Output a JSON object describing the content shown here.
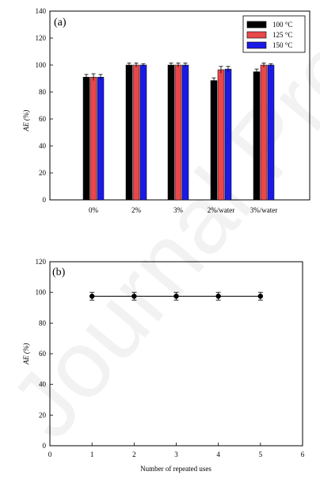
{
  "colors": {
    "s100": "#000000",
    "s125": "#e8474b",
    "s150": "#1a1ae6",
    "axis": "#000000"
  },
  "chart_data": [
    {
      "panel": "(a)",
      "type": "bar",
      "ylabel": "AE (%)",
      "ylim": [
        0,
        140
      ],
      "yticks": [
        0,
        20,
        40,
        60,
        80,
        100,
        120,
        140
      ],
      "categories": [
        "0%",
        "2%",
        "3%",
        "2%/water",
        "3%/water"
      ],
      "legend_position": "top-right",
      "series": [
        {
          "name": "100 °C",
          "color": "#000000",
          "values": [
            91,
            100,
            100,
            88.5,
            95
          ],
          "errors": [
            2,
            1.5,
            1.5,
            2,
            2
          ]
        },
        {
          "name": "125 °C",
          "color": "#e8474b",
          "values": [
            91,
            100,
            100,
            96.5,
            100
          ],
          "errors": [
            2.5,
            1.5,
            1.5,
            2.5,
            1.5
          ]
        },
        {
          "name": "150 °C",
          "color": "#1a1ae6",
          "values": [
            91,
            100,
            100,
            97,
            100
          ],
          "errors": [
            2,
            1,
            1.5,
            2,
            1
          ]
        }
      ]
    },
    {
      "panel": "(b)",
      "type": "line",
      "xlabel": "Number of repeated uses",
      "ylabel": "AE (%)",
      "xlim": [
        0,
        6
      ],
      "ylim": [
        0,
        120
      ],
      "xticks": [
        0,
        1,
        2,
        3,
        4,
        5,
        6
      ],
      "yticks": [
        0,
        20,
        40,
        60,
        80,
        100,
        120
      ],
      "x": [
        1,
        2,
        3,
        4,
        5
      ],
      "y": [
        97.5,
        97.5,
        97.5,
        97.5,
        97.5
      ],
      "errors": [
        2.5,
        2.5,
        2.5,
        2.5,
        2.5
      ]
    }
  ],
  "watermark": "Journal Pre-proof"
}
